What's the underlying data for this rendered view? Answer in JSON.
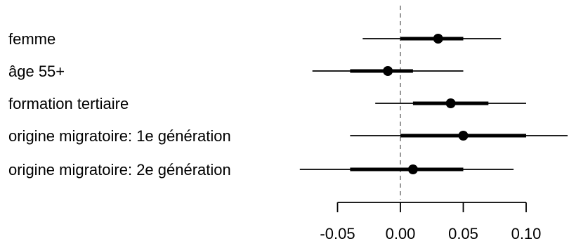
{
  "chart_data": {
    "type": "forest",
    "categories": [
      "femme",
      "âge 55+",
      "formation tertiaire",
      "origine migratoire: 1e génération",
      "origine migratoire: 2e génération"
    ],
    "estimates": [
      0.03,
      -0.01,
      0.04,
      0.05,
      0.01
    ],
    "inner_intervals": [
      [
        0.0,
        0.05
      ],
      [
        -0.04,
        0.01
      ],
      [
        0.01,
        0.07
      ],
      [
        0.0,
        0.1
      ],
      [
        -0.04,
        0.05
      ]
    ],
    "outer_intervals": [
      [
        -0.03,
        0.08
      ],
      [
        -0.07,
        0.05
      ],
      [
        -0.02,
        0.1
      ],
      [
        -0.04,
        0.135
      ],
      [
        -0.08,
        0.09
      ]
    ],
    "x_ticks": [
      -0.05,
      0.0,
      0.05,
      0.1
    ],
    "x_tick_labels": [
      "-0.05",
      "0.00",
      "0.05",
      "0.10"
    ],
    "xlim": [
      -0.05,
      0.1
    ],
    "reference_line": 0.0,
    "title": "",
    "xlabel": "",
    "ylabel": ""
  }
}
